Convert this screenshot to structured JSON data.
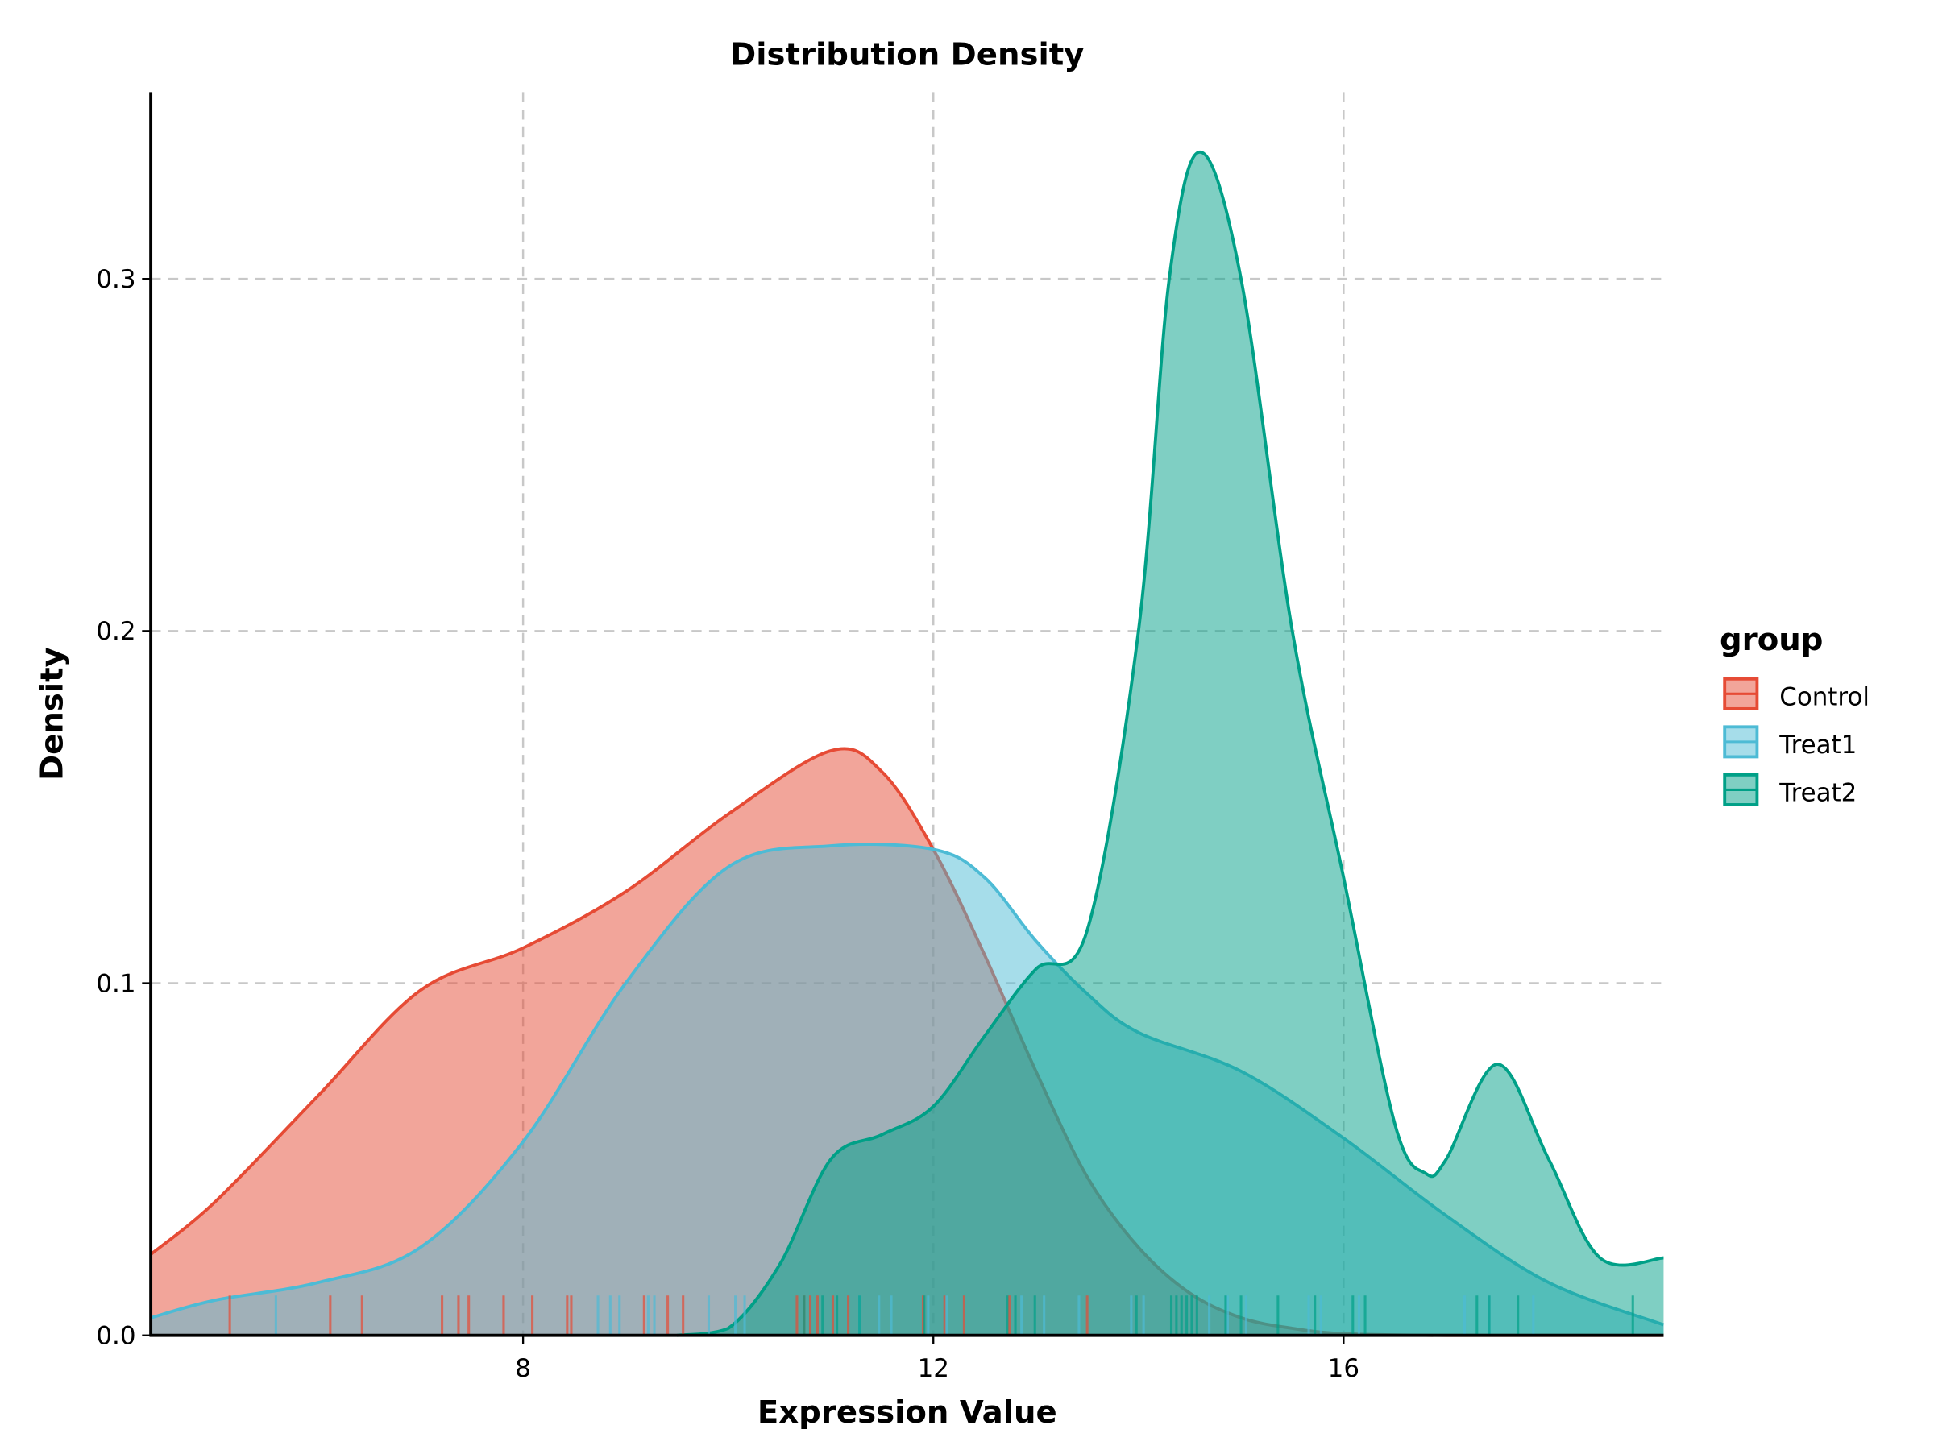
{
  "chart_data": {
    "type": "area",
    "title": "Distribution Density",
    "xlabel": "Expression Value",
    "ylabel": "Density",
    "xlim": [
      4.37,
      19.12
    ],
    "ylim": [
      0,
      0.353
    ],
    "xticks": [
      8,
      12,
      16
    ],
    "xtick_labels": [
      "8",
      "12",
      "16"
    ],
    "yticks": [
      0.0,
      0.1,
      0.2,
      0.3
    ],
    "ytick_labels": [
      "0.0",
      "0.1",
      "0.2",
      "0.3"
    ],
    "grid": true,
    "legend": {
      "title": "group",
      "placement": "right"
    },
    "series": [
      {
        "name": "Control",
        "color": "#E64B35",
        "x": [
          4.37,
          5,
          6,
          7,
          8,
          9,
          10,
          11,
          11.5,
          12,
          12.5,
          13,
          13.5,
          14,
          14.5,
          15,
          15.5,
          16,
          17,
          19.12
        ],
        "density": [
          0.023,
          0.038,
          0.068,
          0.098,
          0.11,
          0.126,
          0.148,
          0.166,
          0.16,
          0.138,
          0.108,
          0.075,
          0.045,
          0.025,
          0.012,
          0.005,
          0.002,
          0.0005,
          0.0,
          0.0
        ],
        "rug": [
          5.14,
          6.12,
          6.43,
          7.21,
          7.37,
          7.47,
          7.81,
          8.09,
          8.43,
          8.47,
          9.18,
          9.41,
          9.56,
          10.67,
          10.74,
          10.8,
          10.87,
          11.02,
          11.17,
          11.9,
          12.11,
          12.3,
          12.74,
          13.5
        ]
      },
      {
        "name": "Treat1",
        "color": "#4DBBD5",
        "x": [
          4.37,
          5,
          6,
          7,
          8,
          9,
          10,
          11,
          12,
          12.5,
          13,
          13.5,
          14,
          15,
          16,
          17,
          18,
          19.12
        ],
        "density": [
          0.005,
          0.01,
          0.015,
          0.025,
          0.055,
          0.1,
          0.133,
          0.139,
          0.138,
          0.13,
          0.112,
          0.097,
          0.086,
          0.075,
          0.056,
          0.034,
          0.015,
          0.003
        ],
        "rug": [
          5.59,
          8.73,
          8.85,
          8.94,
          9.22,
          9.28,
          9.81,
          10.07,
          10.16,
          11.28,
          11.47,
          11.59,
          11.95,
          12.13,
          12.86,
          13.08,
          13.42,
          13.93,
          14.05,
          14.69,
          14.87,
          15.05,
          15.66,
          15.78,
          16.15,
          17.18,
          17.42,
          17.85
        ]
      },
      {
        "name": "Treat2",
        "color": "#00A087",
        "x": [
          9.5,
          10,
          10.5,
          11,
          11.5,
          12,
          12.5,
          13,
          13.5,
          14,
          14.3,
          14.6,
          15,
          15.5,
          16,
          16.5,
          16.8,
          17,
          17.5,
          18,
          18.5,
          19.12
        ],
        "density": [
          0.0,
          0.002,
          0.02,
          0.05,
          0.057,
          0.065,
          0.085,
          0.104,
          0.115,
          0.2,
          0.3,
          0.336,
          0.3,
          0.2,
          0.13,
          0.06,
          0.046,
          0.05,
          0.077,
          0.05,
          0.022,
          0.022
        ],
        "rug": [
          10.74,
          10.92,
          11.06,
          11.28,
          11.91,
          12.72,
          12.8,
          12.99,
          13.98,
          14.32,
          14.37,
          14.42,
          14.47,
          14.52,
          14.57,
          14.85,
          15.0,
          15.36,
          15.72,
          16.09,
          16.21,
          17.3,
          17.42,
          17.7,
          18.82
        ]
      }
    ]
  }
}
